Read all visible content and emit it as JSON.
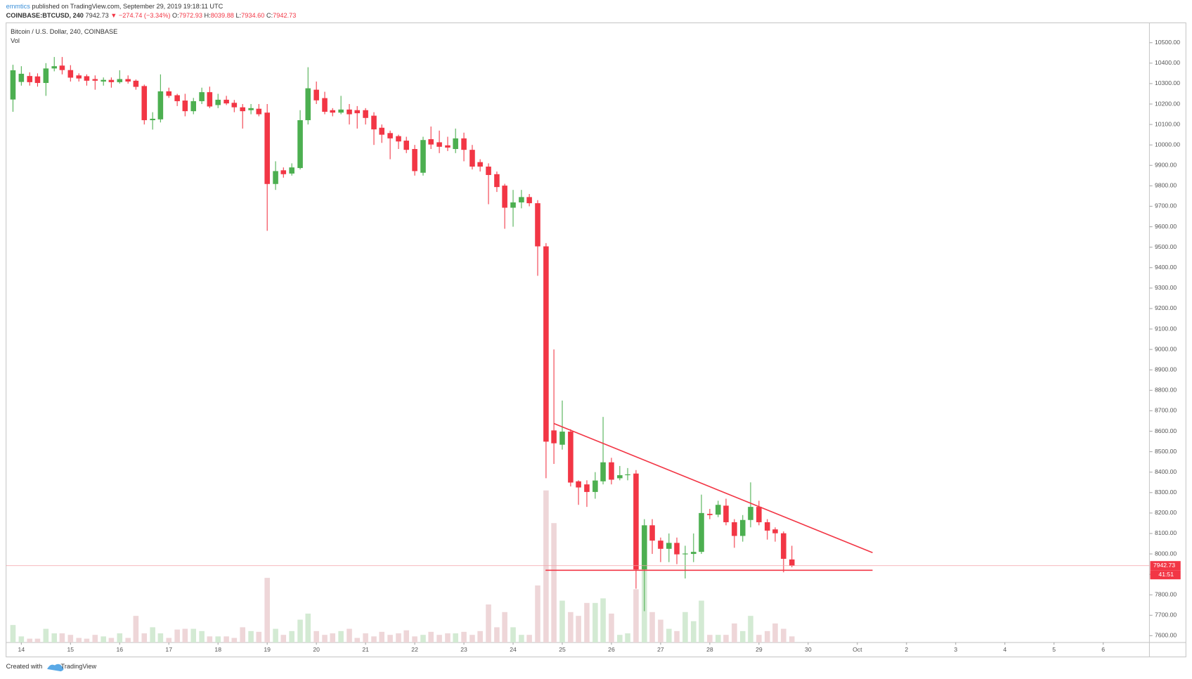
{
  "header": {
    "author": "emmtics",
    "published": "published on TradingView.com, September 29, 2019 19:18:11 UTC",
    "symbol": "COINBASE:BTCUSD, 240",
    "last": "7942.73",
    "change": "▼ −274.74 (−3.34%)",
    "ohlc": [
      {
        "label": "O:",
        "value": "7972.93"
      },
      {
        "label": "H:",
        "value": "8039.88"
      },
      {
        "label": "L:",
        "value": "7934.60"
      },
      {
        "label": "C:",
        "value": "7942.73"
      }
    ]
  },
  "footer": {
    "created": "Created with",
    "brand": "TradingView"
  },
  "chart_data": {
    "type": "candlestick",
    "title": "Bitcoin / U.S. Dollar, 240, COINBASE",
    "volume_label": "Vol",
    "x": [
      13.83,
      14,
      14.17,
      14.33,
      14.5,
      14.67,
      14.83,
      15,
      15.17,
      15.33,
      15.5,
      15.67,
      15.83,
      16,
      16.17,
      16.33,
      16.5,
      16.67,
      16.83,
      17,
      17.17,
      17.33,
      17.5,
      17.67,
      17.83,
      18,
      18.17,
      18.33,
      18.5,
      18.67,
      18.83,
      19,
      19.17,
      19.33,
      19.5,
      19.67,
      19.83,
      20,
      20.17,
      20.33,
      20.5,
      20.67,
      20.83,
      21,
      21.17,
      21.33,
      21.5,
      21.67,
      21.83,
      22,
      22.17,
      22.33,
      22.5,
      22.67,
      22.83,
      23,
      23.17,
      23.33,
      23.5,
      23.67,
      23.83,
      24,
      24.17,
      24.33,
      24.5,
      24.67,
      24.83,
      25,
      25.17,
      25.33,
      25.5,
      25.67,
      25.83,
      26,
      26.17,
      26.33,
      26.5,
      26.67,
      26.83,
      27,
      27.17,
      27.33,
      27.5,
      27.67,
      27.83,
      28,
      28.17,
      28.33,
      28.5,
      28.67,
      28.83,
      29,
      29.17,
      29.33,
      29.5,
      29.67
    ],
    "open": [
      10222,
      10308,
      10337,
      10335,
      10303,
      10374,
      10388,
      10366,
      10340,
      10336,
      10322,
      10310,
      10318,
      10307,
      10322,
      10314,
      10288,
      10121,
      10125,
      10262,
      10243,
      10217,
      10165,
      10214,
      10258,
      10195,
      10221,
      10206,
      10184,
      10170,
      10177,
      10158,
      9809,
      9876,
      9860,
      9887,
      10121,
      10270,
      10229,
      10170,
      10158,
      10173,
      10170,
      10170,
      10143,
      10084,
      10058,
      10043,
      10021,
      9980,
      9864,
      10028,
      10013,
      9998,
      9980,
      10032,
      9976,
      9916,
      9894,
      9857,
      9801,
      9693,
      9719,
      9745,
      9715,
      9504,
      8604,
      8534,
      8598,
      8355,
      8340,
      8303,
      8355,
      8448,
      8370,
      8385,
      8393,
      7924,
      8140,
      8065,
      8025,
      8054,
      7998,
      8000,
      8010,
      8196,
      8192,
      8236,
      8155,
      8088,
      8166,
      8230,
      8155,
      8120,
      8101,
      7972.93
    ],
    "high": [
      10392,
      10385,
      10355,
      10350,
      10400,
      10430,
      10430,
      10390,
      10350,
      10345,
      10340,
      10330,
      10330,
      10365,
      10340,
      10320,
      10295,
      10160,
      10345,
      10280,
      10250,
      10250,
      10230,
      10280,
      10285,
      10250,
      10240,
      10220,
      10200,
      10200,
      10200,
      10200,
      9920,
      9890,
      9910,
      10170,
      10380,
      10310,
      10260,
      10180,
      10240,
      10200,
      10190,
      10180,
      10160,
      10100,
      10070,
      10050,
      10040,
      10000,
      10040,
      10090,
      10070,
      10040,
      10080,
      10060,
      10000,
      9930,
      9910,
      9870,
      9810,
      9780,
      9780,
      9760,
      9730,
      9520,
      9000,
      8750,
      8610,
      8360,
      8360,
      8400,
      8670,
      8470,
      8430,
      8420,
      8410,
      8170,
      8170,
      8080,
      8100,
      8080,
      8040,
      8100,
      8290,
      8220,
      8260,
      8270,
      8170,
      8190,
      8350,
      8260,
      8170,
      8130,
      8110,
      8039.88
    ],
    "low": [
      10162,
      10290,
      10290,
      10285,
      10240,
      10360,
      10345,
      10310,
      10310,
      10290,
      10270,
      10290,
      10280,
      10300,
      10300,
      10270,
      10100,
      10075,
      10110,
      10230,
      10190,
      10140,
      10150,
      10200,
      10180,
      10180,
      10195,
      10160,
      10080,
      10150,
      10140,
      9580,
      9780,
      9840,
      9850,
      9880,
      10100,
      10200,
      10150,
      10140,
      10150,
      10100,
      10080,
      10100,
      10000,
      10010,
      9930,
      9980,
      9960,
      9850,
      9850,
      9980,
      9960,
      9970,
      9960,
      9920,
      9880,
      9870,
      9710,
      9770,
      9590,
      9600,
      9690,
      9700,
      9360,
      8370,
      8440,
      8510,
      8330,
      8240,
      8230,
      8270,
      8340,
      8340,
      8360,
      8360,
      7830,
      7720,
      8000,
      7960,
      7960,
      7950,
      7880,
      7960,
      8000,
      8170,
      8180,
      8140,
      8030,
      8060,
      8130,
      8140,
      8070,
      8060,
      7910,
      7934.6
    ],
    "close": [
      10365,
      10348,
      10307,
      10303,
      10374,
      10385,
      10366,
      10329,
      10325,
      10314,
      10314,
      10318,
      10307,
      10322,
      10310,
      10284,
      10121,
      10128,
      10262,
      10240,
      10214,
      10165,
      10214,
      10258,
      10188,
      10221,
      10203,
      10184,
      10165,
      10180,
      10150,
      9809,
      9872,
      9857,
      9890,
      10121,
      10277,
      10218,
      10162,
      10158,
      10173,
      10150,
      10155,
      10132,
      10076,
      10050,
      10032,
      10017,
      9976,
      9872,
      10024,
      10002,
      9991,
      9987,
      10032,
      9976,
      9894,
      9894,
      9853,
      9794,
      9693,
      9719,
      9745,
      9715,
      9504,
      8549,
      8541,
      8598,
      8349,
      8325,
      8303,
      8359,
      8448,
      8363,
      8385,
      8389,
      7924,
      8140,
      8065,
      8025,
      8054,
      7998,
      8002,
      8010,
      8200,
      8190,
      8240,
      8155,
      8088,
      8166,
      8230,
      8155,
      8114,
      8101,
      7976,
      7942.73
    ],
    "volume": [
      23,
      8,
      5,
      5,
      18,
      12,
      12,
      10,
      6,
      5,
      10,
      8,
      6,
      12,
      6,
      35,
      12,
      20,
      12,
      6,
      17,
      18,
      18,
      15,
      8,
      8,
      8,
      6,
      20,
      15,
      14,
      85,
      18,
      10,
      15,
      30,
      38,
      15,
      10,
      12,
      15,
      18,
      6,
      12,
      8,
      14,
      10,
      12,
      16,
      8,
      10,
      14,
      10,
      12,
      12,
      14,
      10,
      15,
      50,
      20,
      40,
      20,
      10,
      10,
      75,
      200,
      157,
      55,
      40,
      35,
      52,
      52,
      58,
      38,
      10,
      12,
      70,
      95,
      40,
      30,
      18,
      15,
      40,
      28,
      55,
      10,
      10,
      10,
      25,
      15,
      35,
      10,
      15,
      25,
      18,
      8
    ],
    "xlim": [
      13.69,
      36.94
    ],
    "xticks": [
      14,
      15,
      16,
      17,
      18,
      19,
      20,
      21,
      22,
      23,
      24,
      25,
      26,
      27,
      28,
      29,
      30,
      {
        "value": 31,
        "label": "Oct"
      },
      {
        "value": 32,
        "label": "2"
      },
      {
        "value": 33,
        "label": "3"
      },
      {
        "value": 34,
        "label": "4"
      },
      {
        "value": 35,
        "label": "5"
      },
      {
        "value": 36,
        "label": "6"
      }
    ],
    "ylim": [
      7567,
      10597
    ],
    "yticks": [
      {
        "value": 7600,
        "label": "7600.00"
      },
      {
        "value": 7700,
        "label": "7700.00"
      },
      {
        "value": 7800,
        "label": "7800.00"
      },
      {
        "value": 7900,
        "label": "7900.00"
      },
      {
        "value": 8000,
        "label": "8000.00"
      },
      {
        "value": 8100,
        "label": "8100.00"
      },
      {
        "value": 8200,
        "label": "8200.00"
      },
      {
        "value": 8300,
        "label": "8300.00"
      },
      {
        "value": 8400,
        "label": "8400.00"
      },
      {
        "value": 8500,
        "label": "8500.00"
      },
      {
        "value": 8600,
        "label": "8600.00"
      },
      {
        "value": 8700,
        "label": "8700.00"
      },
      {
        "value": 8800,
        "label": "8800.00"
      },
      {
        "value": 8900,
        "label": "8900.00"
      },
      {
        "value": 9000,
        "label": "9000.00"
      },
      {
        "value": 9100,
        "label": "9100.00"
      },
      {
        "value": 9200,
        "label": "9200.00"
      },
      {
        "value": 9300,
        "label": "9300.00"
      },
      {
        "value": 9400,
        "label": "9400.00"
      },
      {
        "value": 9500,
        "label": "9500.00"
      },
      {
        "value": 9600,
        "label": "9600.00"
      },
      {
        "value": 9700,
        "label": "9700.00"
      },
      {
        "value": 9800,
        "label": "9800.00"
      },
      {
        "value": 9900,
        "label": "9900.00"
      },
      {
        "value": 10000,
        "label": "10000.00"
      },
      {
        "value": 10100,
        "label": "10100.00"
      },
      {
        "value": 10200,
        "label": "10200.00"
      },
      {
        "value": 10300,
        "label": "10300.00"
      },
      {
        "value": 10400,
        "label": "10400.00"
      },
      {
        "value": 10500,
        "label": "10500.00"
      }
    ],
    "grid": false,
    "up_color": "#4caf50",
    "down_color": "#f23645",
    "volume_up_color": "#d3ead3",
    "volume_down_color": "#eed6d8",
    "last_price": 7942.73,
    "countdown": "41:51",
    "trendline_color": "#f23645",
    "trendlines": [
      {
        "x": [
          24.83,
          31.31
        ],
        "y": [
          8638,
          8006
        ]
      },
      {
        "x": [
          24.66,
          31.31
        ],
        "y": [
          7920,
          7920
        ]
      }
    ]
  }
}
